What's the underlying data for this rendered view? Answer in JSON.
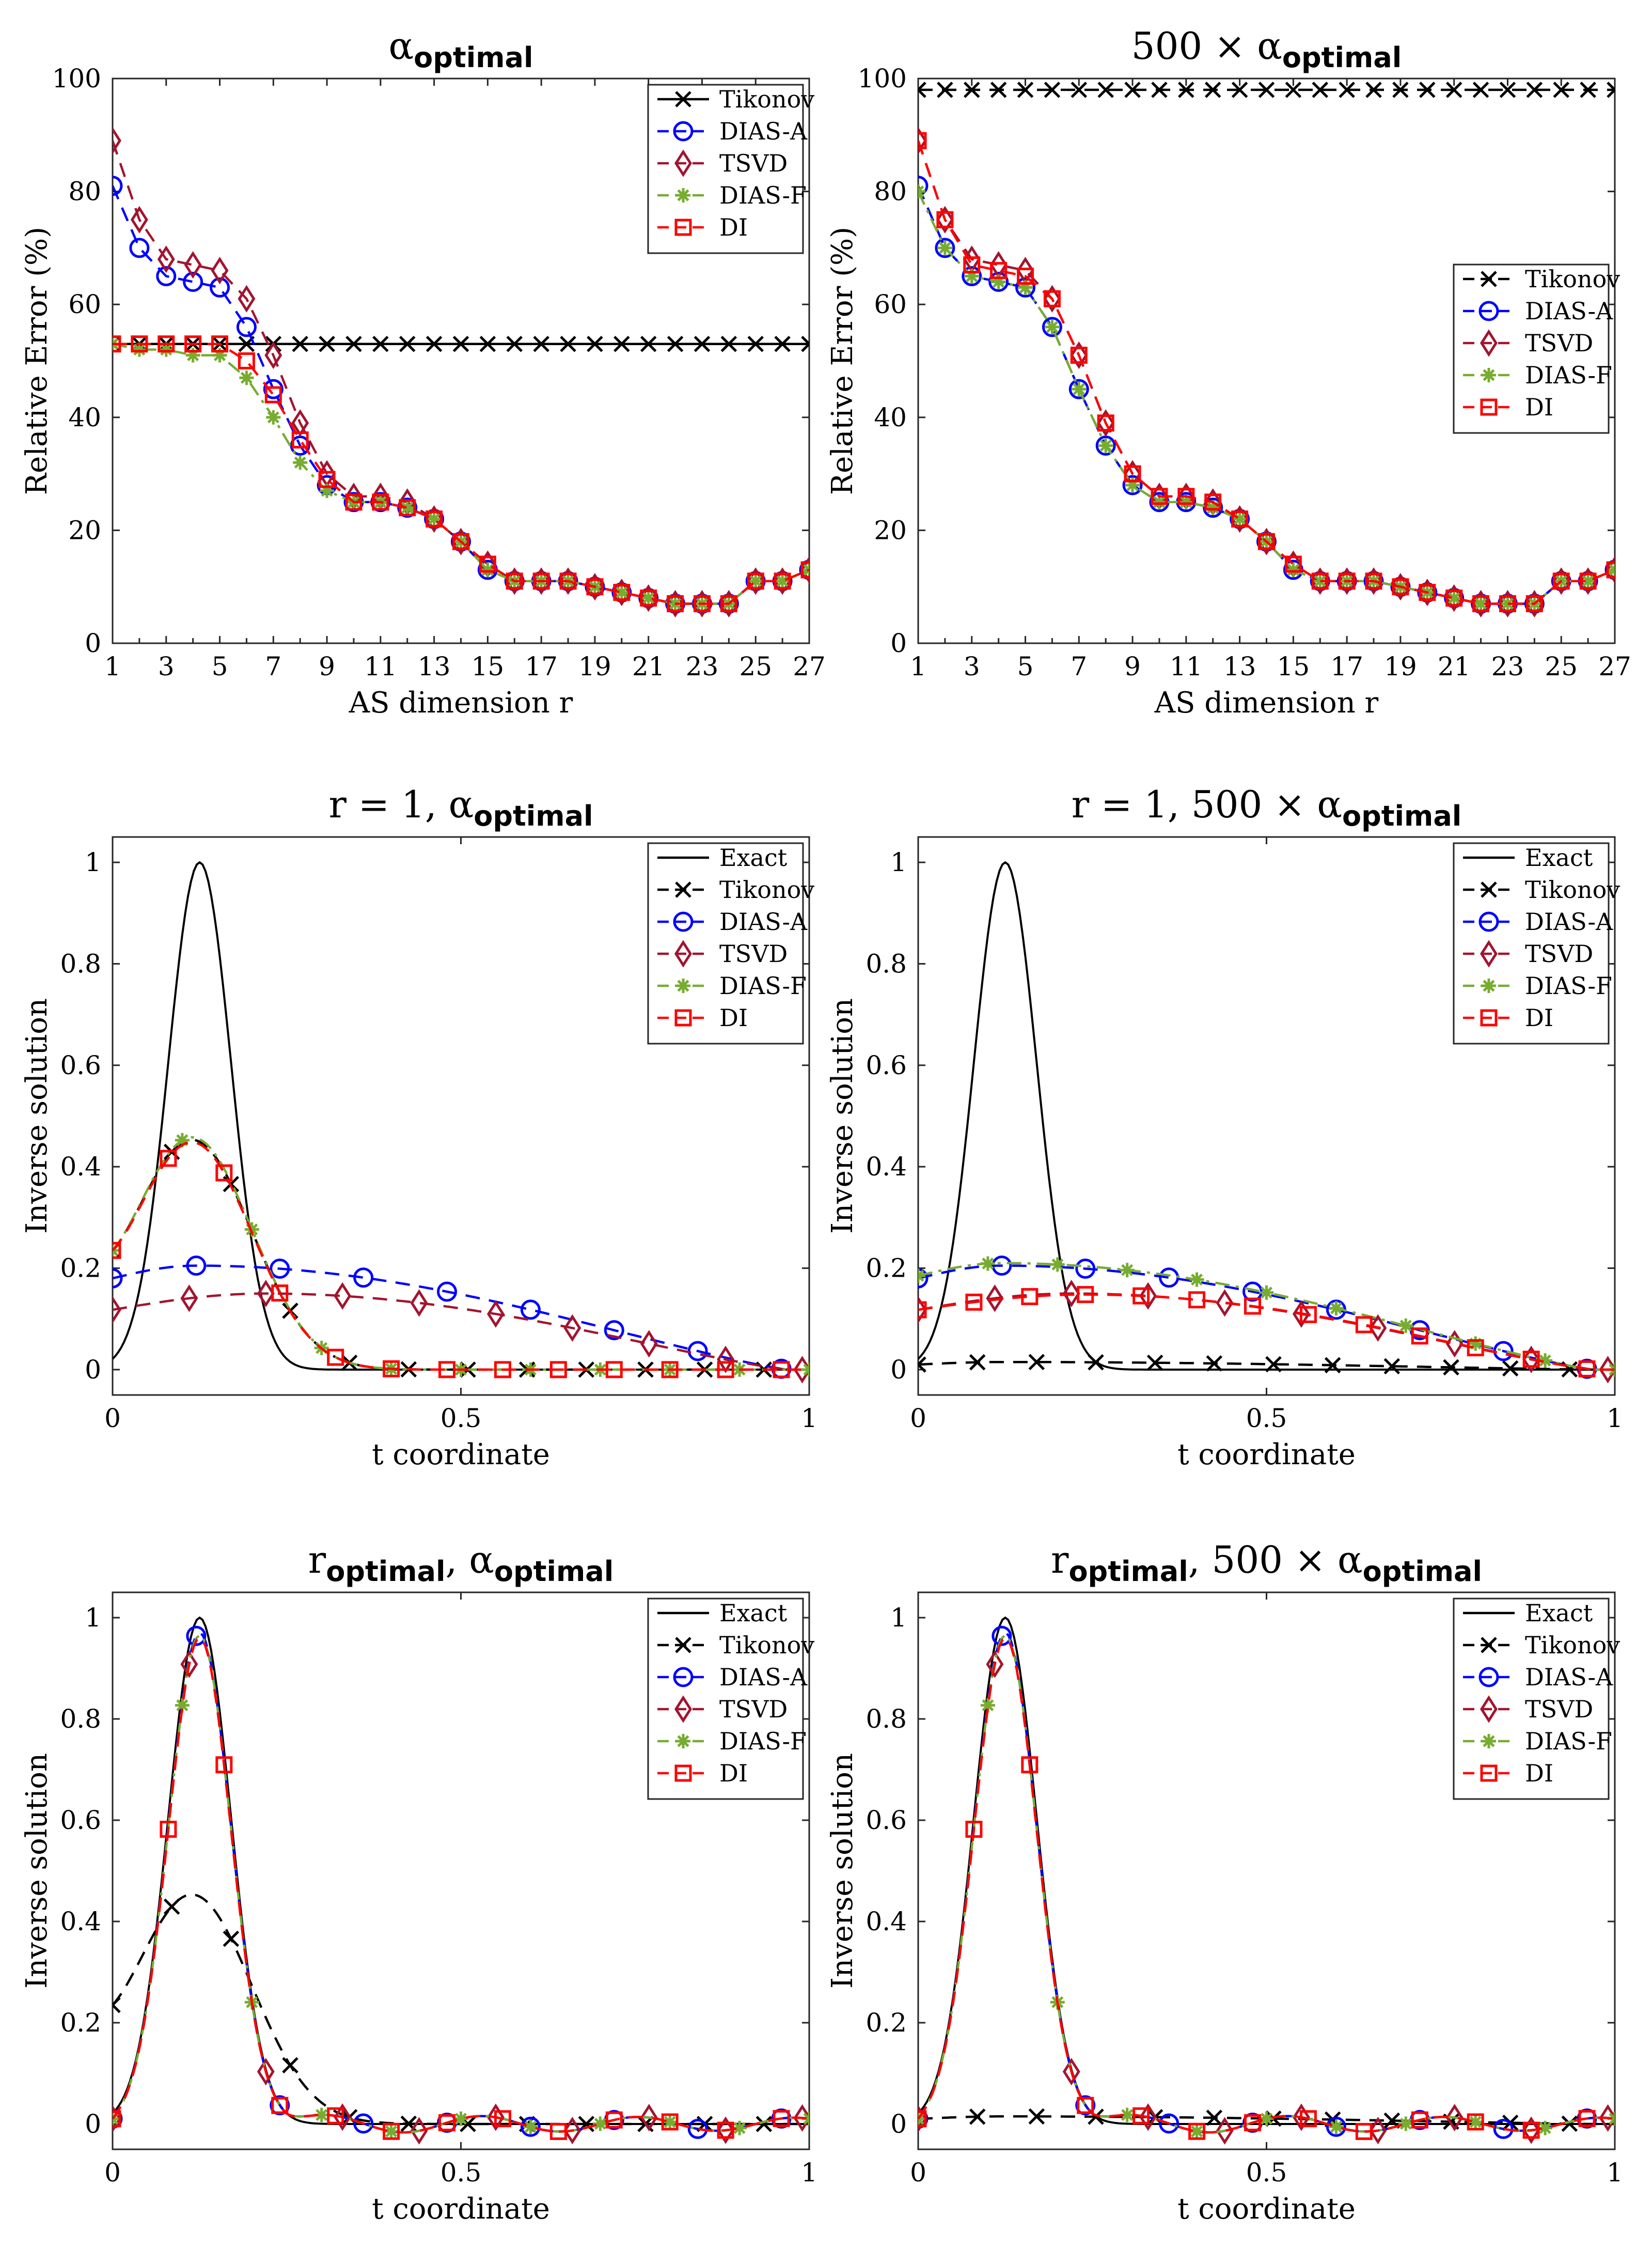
{
  "colors": {
    "Tikonov": "#000000",
    "DIAS-A": "#0000ff",
    "TSVD": "#a2142f",
    "DIAS-F": "#77ac30",
    "DI": "#ff0000",
    "Exact": "#000000"
  },
  "chart_data": [
    {
      "id": "panel-1",
      "type": "line",
      "title": {
        "main": "α",
        "sub": "optimal",
        "prefix": "",
        "suffix": ""
      },
      "xlabel": "AS dimension r",
      "ylabel": "Relative Error (%)",
      "xlim": [
        1,
        27
      ],
      "ylim": [
        0,
        100
      ],
      "xticks": [
        "1",
        "3",
        "5",
        "7",
        "9",
        "11",
        "13",
        "15",
        "17",
        "19",
        "21",
        "23",
        "25",
        "27"
      ],
      "yticks": [
        "0",
        "20",
        "40",
        "60",
        "80",
        "100"
      ],
      "legend_position": "top-right",
      "x": [
        1,
        2,
        3,
        4,
        5,
        6,
        7,
        8,
        9,
        10,
        11,
        12,
        13,
        14,
        15,
        16,
        17,
        18,
        19,
        20,
        21,
        22,
        23,
        24,
        25,
        26,
        27
      ],
      "series": [
        {
          "name": "Tikonov",
          "marker": "x",
          "dash": "solid",
          "values": [
            53,
            53,
            53,
            53,
            53,
            53,
            53,
            53,
            53,
            53,
            53,
            53,
            53,
            53,
            53,
            53,
            53,
            53,
            53,
            53,
            53,
            53,
            53,
            53,
            53,
            53,
            53
          ]
        },
        {
          "name": "DIAS-A",
          "marker": "o",
          "dash": "dashed",
          "values": [
            81,
            70,
            65,
            64,
            63,
            56,
            45,
            35,
            28,
            25,
            25,
            24,
            22,
            18,
            13,
            11,
            11,
            11,
            10,
            9,
            8,
            7,
            7,
            7,
            11,
            11,
            13
          ]
        },
        {
          "name": "TSVD",
          "marker": "d",
          "dash": "dashed",
          "values": [
            89,
            75,
            68,
            67,
            66,
            61,
            51,
            39,
            30,
            26,
            26,
            25,
            22,
            18,
            14,
            11,
            11,
            11,
            10,
            9,
            8,
            7,
            7,
            7,
            11,
            11,
            13
          ]
        },
        {
          "name": "DIAS-F",
          "marker": "*",
          "dash": "dashdot",
          "values": [
            53,
            52,
            52,
            51,
            51,
            47,
            40,
            32,
            27,
            25,
            25,
            24,
            22,
            18,
            13,
            11,
            11,
            11,
            10,
            9,
            8,
            7,
            7,
            7,
            11,
            11,
            13
          ]
        },
        {
          "name": "DI",
          "marker": "s",
          "dash": "dashed",
          "values": [
            53,
            53,
            53,
            53,
            53,
            50,
            44,
            36,
            29,
            25,
            25,
            24,
            22,
            18,
            14,
            11,
            11,
            11,
            10,
            9,
            8,
            7,
            7,
            7,
            11,
            11,
            13
          ]
        }
      ]
    },
    {
      "id": "panel-2",
      "type": "line",
      "title": {
        "main": "α",
        "sub": "optimal",
        "prefix": "500 × ",
        "suffix": ""
      },
      "xlabel": "AS dimension r",
      "ylabel": "Relative Error (%)",
      "xlim": [
        1,
        27
      ],
      "ylim": [
        0,
        100
      ],
      "xticks": [
        "1",
        "3",
        "5",
        "7",
        "9",
        "11",
        "13",
        "15",
        "17",
        "19",
        "21",
        "23",
        "25",
        "27"
      ],
      "yticks": [
        "0",
        "20",
        "40",
        "60",
        "80",
        "100"
      ],
      "legend_position": "center-right",
      "x": [
        1,
        2,
        3,
        4,
        5,
        6,
        7,
        8,
        9,
        10,
        11,
        12,
        13,
        14,
        15,
        16,
        17,
        18,
        19,
        20,
        21,
        22,
        23,
        24,
        25,
        26,
        27
      ],
      "series": [
        {
          "name": "Tikonov",
          "marker": "x",
          "dash": "dashed",
          "values": [
            98,
            98,
            98,
            98,
            98,
            98,
            98,
            98,
            98,
            98,
            98,
            98,
            98,
            98,
            98,
            98,
            98,
            98,
            98,
            98,
            98,
            98,
            98,
            98,
            98,
            98,
            98
          ]
        },
        {
          "name": "DIAS-A",
          "marker": "o",
          "dash": "dashed",
          "values": [
            81,
            70,
            65,
            64,
            63,
            56,
            45,
            35,
            28,
            25,
            25,
            24,
            22,
            18,
            13,
            11,
            11,
            11,
            10,
            9,
            8,
            7,
            7,
            7,
            11,
            11,
            13
          ]
        },
        {
          "name": "TSVD",
          "marker": "d",
          "dash": "dashed",
          "values": [
            89,
            75,
            68,
            67,
            66,
            61,
            51,
            39,
            30,
            26,
            26,
            25,
            22,
            18,
            14,
            11,
            11,
            11,
            10,
            9,
            8,
            7,
            7,
            7,
            11,
            11,
            13
          ]
        },
        {
          "name": "DIAS-F",
          "marker": "*",
          "dash": "dashdot",
          "values": [
            80,
            70,
            65,
            64,
            63,
            56,
            45,
            35,
            28,
            25,
            25,
            24,
            22,
            18,
            13,
            11,
            11,
            11,
            10,
            9,
            8,
            7,
            7,
            7,
            11,
            11,
            13
          ]
        },
        {
          "name": "DI",
          "marker": "s",
          "dash": "dashed",
          "values": [
            89,
            75,
            67,
            66,
            65,
            61,
            51,
            39,
            30,
            26,
            26,
            25,
            22,
            18,
            14,
            11,
            11,
            11,
            10,
            9,
            8,
            7,
            7,
            7,
            11,
            11,
            13
          ]
        }
      ]
    },
    {
      "id": "panel-3",
      "type": "line",
      "title": {
        "main": "α",
        "sub": "optimal",
        "prefix": "r = 1, ",
        "suffix": ""
      },
      "xlabel": "t coordinate",
      "ylabel": "Inverse solution",
      "xlim": [
        0,
        1
      ],
      "ylim": [
        -0.05,
        1.05
      ],
      "xticks": [
        "0",
        "0.5",
        "1"
      ],
      "yticks": [
        "0",
        "0.2",
        "0.4",
        "0.6",
        "0.8",
        "1"
      ],
      "legend_position": "top-right",
      "series": [
        {
          "name": "Exact",
          "marker": "none",
          "dash": "solid",
          "curve": {
            "kind": "gauss",
            "amp": 1.0,
            "center": 0.125,
            "width": 0.045
          }
        },
        {
          "name": "Tikonov",
          "marker": "x",
          "dash": "dashed",
          "curve": {
            "kind": "bump",
            "base": 0.0,
            "start": 0.235,
            "amp": 0.45,
            "center": 0.115,
            "width": 0.085
          }
        },
        {
          "name": "DIAS-A",
          "marker": "o",
          "dash": "dashed",
          "curve": {
            "kind": "broad",
            "start": 0.18,
            "amp": 0.205,
            "center": 0.12,
            "end_x": 0.97
          }
        },
        {
          "name": "TSVD",
          "marker": "d",
          "dash": "dashed",
          "curve": {
            "kind": "broad",
            "start": 0.118,
            "amp": 0.15,
            "center": 0.22,
            "end_x": 0.97
          }
        },
        {
          "name": "DIAS-F",
          "marker": "*",
          "dash": "dashdot",
          "curve": {
            "kind": "bump",
            "base": 0.0,
            "start": 0.235,
            "amp": 0.455,
            "center": 0.115,
            "width": 0.085
          }
        },
        {
          "name": "DI",
          "marker": "s",
          "dash": "dashed",
          "curve": {
            "kind": "bump",
            "base": 0.0,
            "start": 0.235,
            "amp": 0.445,
            "center": 0.115,
            "width": 0.085
          }
        }
      ]
    },
    {
      "id": "panel-4",
      "type": "line",
      "title": {
        "main": "α",
        "sub": "optimal",
        "prefix": "r = 1, 500 × ",
        "suffix": ""
      },
      "xlabel": "t coordinate",
      "ylabel": "Inverse solution",
      "xlim": [
        0,
        1
      ],
      "ylim": [
        -0.05,
        1.05
      ],
      "xticks": [
        "0",
        "0.5",
        "1"
      ],
      "yticks": [
        "0",
        "0.2",
        "0.4",
        "0.6",
        "0.8",
        "1"
      ],
      "legend_position": "top-right",
      "series": [
        {
          "name": "Exact",
          "marker": "none",
          "dash": "solid",
          "curve": {
            "kind": "gauss",
            "amp": 1.0,
            "center": 0.125,
            "width": 0.045
          }
        },
        {
          "name": "Tikonov",
          "marker": "x",
          "dash": "dashed",
          "curve": {
            "kind": "broad",
            "start": 0.01,
            "amp": 0.015,
            "center": 0.12,
            "end_x": 0.97
          }
        },
        {
          "name": "DIAS-A",
          "marker": "o",
          "dash": "dashed",
          "curve": {
            "kind": "broad",
            "start": 0.18,
            "amp": 0.205,
            "center": 0.12,
            "end_x": 0.97
          }
        },
        {
          "name": "TSVD",
          "marker": "d",
          "dash": "dashed",
          "curve": {
            "kind": "broad",
            "start": 0.118,
            "amp": 0.15,
            "center": 0.22,
            "end_x": 0.97
          }
        },
        {
          "name": "DIAS-F",
          "marker": "*",
          "dash": "dashdot",
          "curve": {
            "kind": "broad",
            "start": 0.185,
            "amp": 0.21,
            "center": 0.12,
            "end_x": 0.97
          }
        },
        {
          "name": "DI",
          "marker": "s",
          "dash": "dashed",
          "curve": {
            "kind": "broad",
            "start": 0.118,
            "amp": 0.148,
            "center": 0.24,
            "end_x": 0.97
          }
        }
      ]
    },
    {
      "id": "panel-5",
      "type": "line",
      "title": {
        "main": "α",
        "sub": "optimal",
        "prefix": "r",
        "prefix_sub": "optimal",
        "prefix_tail": ", "
      },
      "xlabel": "t coordinate",
      "ylabel": "Inverse solution",
      "xlim": [
        0,
        1
      ],
      "ylim": [
        -0.05,
        1.05
      ],
      "xticks": [
        "0",
        "0.5",
        "1"
      ],
      "yticks": [
        "0",
        "0.2",
        "0.4",
        "0.6",
        "0.8",
        "1"
      ],
      "legend_position": "top-right",
      "series": [
        {
          "name": "Exact",
          "marker": "none",
          "dash": "solid",
          "curve": {
            "kind": "gauss",
            "amp": 1.0,
            "center": 0.125,
            "width": 0.045
          }
        },
        {
          "name": "Tikonov",
          "marker": "x",
          "dash": "dashed",
          "curve": {
            "kind": "bump",
            "base": 0.0,
            "start": 0.235,
            "amp": 0.45,
            "center": 0.115,
            "width": 0.085
          }
        },
        {
          "name": "DIAS-A",
          "marker": "o",
          "dash": "dashed",
          "curve": {
            "kind": "ripple",
            "amp": 0.97,
            "center": 0.125,
            "width": 0.045
          }
        },
        {
          "name": "TSVD",
          "marker": "d",
          "dash": "dashed",
          "curve": {
            "kind": "ripple",
            "amp": 0.96,
            "center": 0.125,
            "width": 0.045
          }
        },
        {
          "name": "DIAS-F",
          "marker": "*",
          "dash": "dashdot",
          "curve": {
            "kind": "ripple",
            "amp": 0.965,
            "center": 0.125,
            "width": 0.045
          }
        },
        {
          "name": "DI",
          "marker": "s",
          "dash": "dashed",
          "curve": {
            "kind": "ripple",
            "amp": 0.96,
            "center": 0.125,
            "width": 0.045
          }
        }
      ]
    },
    {
      "id": "panel-6",
      "type": "line",
      "title": {
        "main": "α",
        "sub": "optimal",
        "prefix": "r",
        "prefix_sub": "optimal",
        "prefix_tail": ", 500 × "
      },
      "xlabel": "t coordinate",
      "ylabel": "Inverse solution",
      "xlim": [
        0,
        1
      ],
      "ylim": [
        -0.05,
        1.05
      ],
      "xticks": [
        "0",
        "0.5",
        "1"
      ],
      "yticks": [
        "0",
        "0.2",
        "0.4",
        "0.6",
        "0.8",
        "1"
      ],
      "legend_position": "top-right",
      "series": [
        {
          "name": "Exact",
          "marker": "none",
          "dash": "solid",
          "curve": {
            "kind": "gauss",
            "amp": 1.0,
            "center": 0.125,
            "width": 0.045
          }
        },
        {
          "name": "Tikonov",
          "marker": "x",
          "dash": "dashed",
          "curve": {
            "kind": "broad",
            "start": 0.01,
            "amp": 0.015,
            "center": 0.12,
            "end_x": 0.97
          }
        },
        {
          "name": "DIAS-A",
          "marker": "o",
          "dash": "dashed",
          "curve": {
            "kind": "ripple",
            "amp": 0.97,
            "center": 0.125,
            "width": 0.045
          }
        },
        {
          "name": "TSVD",
          "marker": "d",
          "dash": "dashed",
          "curve": {
            "kind": "ripple",
            "amp": 0.96,
            "center": 0.125,
            "width": 0.045
          }
        },
        {
          "name": "DIAS-F",
          "marker": "*",
          "dash": "dashdot",
          "curve": {
            "kind": "ripple",
            "amp": 0.965,
            "center": 0.125,
            "width": 0.045
          }
        },
        {
          "name": "DI",
          "marker": "s",
          "dash": "dashed",
          "curve": {
            "kind": "ripple",
            "amp": 0.96,
            "center": 0.125,
            "width": 0.045
          }
        }
      ]
    }
  ]
}
